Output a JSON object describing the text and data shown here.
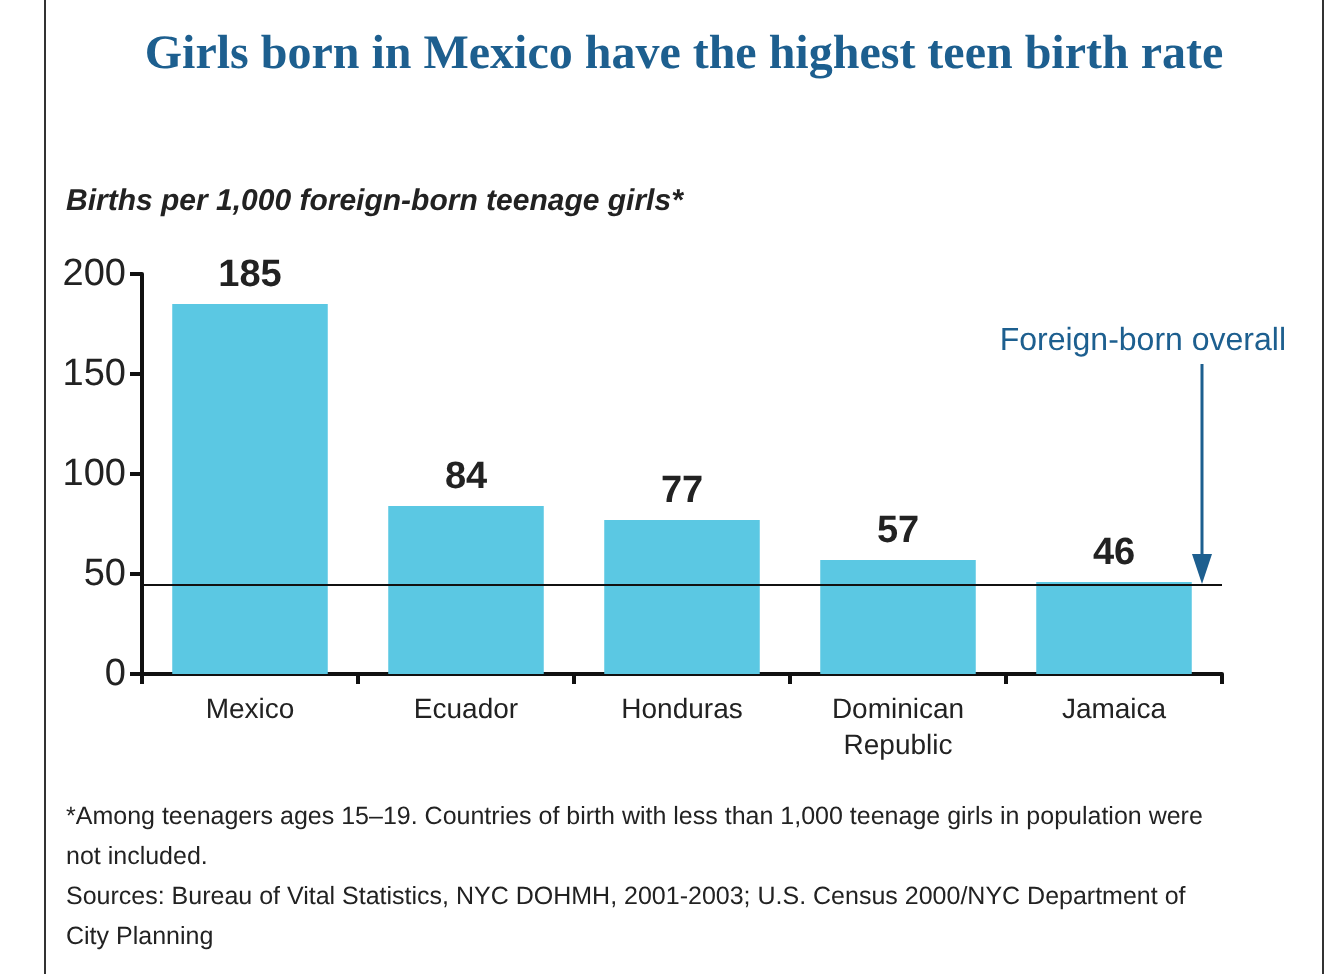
{
  "chart_data": {
    "type": "bar",
    "title": "Girls born in Mexico have the highest teen birth rate",
    "ylabel": "Births per 1,000  foreign-born teenage girls*",
    "categories": [
      "Mexico",
      "Ecuador",
      "Honduras",
      "Dominican\nRepublic",
      "Jamaica"
    ],
    "values": [
      185,
      84,
      77,
      57,
      46
    ],
    "color": "#5bc8e3",
    "data_labels": true,
    "ylim": [
      0,
      200
    ],
    "yticks": [
      0,
      50,
      100,
      150,
      200
    ],
    "grid": false,
    "ref_lines": [
      {
        "axis": "y",
        "value": 45,
        "label": "Foreign-born overall"
      }
    ],
    "annotations": [
      "*Among teenagers ages 15–19. Countries of birth with less than 1,000 teenage girls in population were not included.",
      "Sources: Bureau of Vital Statistics, NYC DOHMH, 2001-2003;  U.S. Census 2000/NYC Department of City Planning"
    ]
  }
}
